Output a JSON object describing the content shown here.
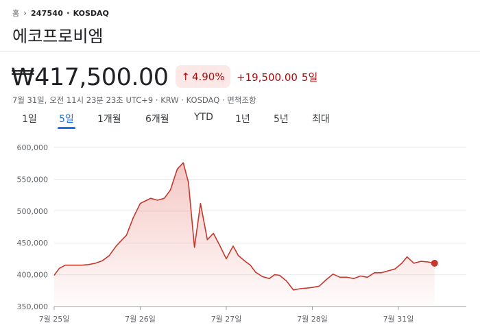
{
  "breadcrumb": {
    "home": "홈",
    "ticker": "247540",
    "separator": "•",
    "market": "KOSDAQ"
  },
  "stock": {
    "name": "에코프로비엠",
    "price": "₩417,500.00",
    "change_percent": "4.90%",
    "change_value": "+19,500.00",
    "change_period": "5일",
    "meta": "7월 31일, 오전 11시 23분 23초 UTC+9 · KRW · KOSDAQ · 면책조항"
  },
  "tabs": [
    {
      "label": "1일",
      "active": false
    },
    {
      "label": "5일",
      "active": true
    },
    {
      "label": "1개월",
      "active": false
    },
    {
      "label": "6개월",
      "active": false
    },
    {
      "label": "YTD",
      "active": false
    },
    {
      "label": "1년",
      "active": false
    },
    {
      "label": "5년",
      "active": false
    },
    {
      "label": "최대",
      "active": false
    }
  ],
  "colors": {
    "line": "#c5372c",
    "accent": "#1a73e8",
    "negative_bg": "#fce8e6",
    "negative_text": "#a50e0e"
  },
  "icons": {
    "chevron": "chevron-right-icon",
    "arrow": "arrow-up-icon"
  },
  "chart_data": {
    "type": "line",
    "x_unit": "trading day index (0 = 7월 25일 open, 1 = 7월 26일 open, ...)",
    "y_ticks": [
      "600,000",
      "550,000",
      "500,000",
      "450,000",
      "400,000",
      "350,000"
    ],
    "y_tick_values": [
      600000,
      550000,
      500000,
      450000,
      400000,
      350000
    ],
    "x_ticks": [
      "7월 25일",
      "7월 26일",
      "7월 27일",
      "7월 28일",
      "7월 31일"
    ],
    "x_tick_values": [
      0,
      1,
      2,
      3,
      4
    ],
    "xlim": [
      0,
      4.8
    ],
    "ylim": [
      350000,
      600000
    ],
    "grid": "horizontal",
    "series": [
      {
        "points": [
          [
            0.0,
            399000
          ],
          [
            0.06,
            410000
          ],
          [
            0.13,
            415000
          ],
          [
            0.32,
            415000
          ],
          [
            0.4,
            416000
          ],
          [
            0.48,
            418000
          ],
          [
            0.56,
            422000
          ],
          [
            0.64,
            430000
          ],
          [
            0.72,
            445000
          ],
          [
            0.79,
            455000
          ],
          [
            0.84,
            462000
          ],
          [
            0.92,
            490000
          ],
          [
            1.0,
            512000
          ],
          [
            1.06,
            516000
          ],
          [
            1.12,
            520000
          ],
          [
            1.2,
            517000
          ],
          [
            1.28,
            520000
          ],
          [
            1.35,
            533000
          ],
          [
            1.43,
            566000
          ],
          [
            1.5,
            576000
          ],
          [
            1.56,
            545000
          ],
          [
            1.63,
            443000
          ],
          [
            1.7,
            512000
          ],
          [
            1.78,
            455000
          ],
          [
            1.85,
            465000
          ],
          [
            1.92,
            447000
          ],
          [
            2.0,
            425000
          ],
          [
            2.08,
            445000
          ],
          [
            2.14,
            430000
          ],
          [
            2.22,
            421000
          ],
          [
            2.28,
            415000
          ],
          [
            2.34,
            404000
          ],
          [
            2.42,
            397000
          ],
          [
            2.5,
            394000
          ],
          [
            2.56,
            400000
          ],
          [
            2.62,
            399000
          ],
          [
            2.7,
            390000
          ],
          [
            2.78,
            376000
          ],
          [
            2.86,
            378000
          ],
          [
            2.94,
            379000
          ],
          [
            3.0,
            380000
          ],
          [
            3.08,
            382000
          ],
          [
            3.16,
            392000
          ],
          [
            3.24,
            401000
          ],
          [
            3.32,
            396000
          ],
          [
            3.4,
            396000
          ],
          [
            3.48,
            394000
          ],
          [
            3.56,
            398000
          ],
          [
            3.64,
            396000
          ],
          [
            3.72,
            403000
          ],
          [
            3.8,
            403000
          ],
          [
            3.88,
            406000
          ],
          [
            3.96,
            409000
          ],
          [
            4.04,
            418000
          ],
          [
            4.1,
            428000
          ],
          [
            4.18,
            418000
          ],
          [
            4.26,
            421000
          ],
          [
            4.34,
            420000
          ],
          [
            4.42,
            418000
          ]
        ]
      }
    ]
  }
}
